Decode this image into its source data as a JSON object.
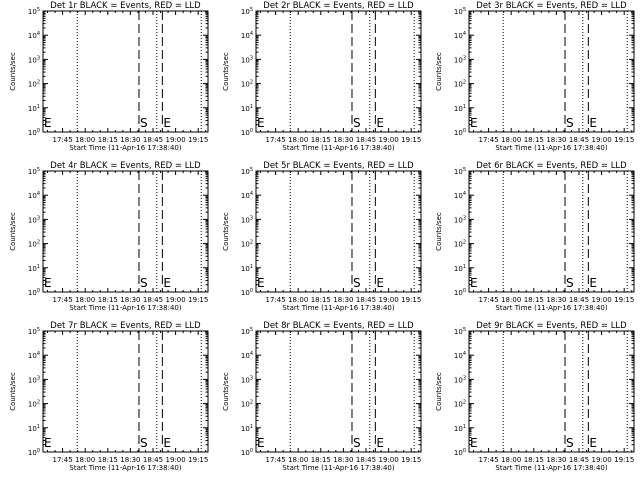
{
  "chart_data": [
    {
      "type": "line",
      "title": "Det 1r BLACK = Events, RED = LLD",
      "xlabel": "Start Time (11-Apr-16 17:38:40)",
      "ylabel": "Counts/sec"
    },
    {
      "type": "line",
      "title": "Det 2r BLACK = Events, RED = LLD",
      "xlabel": "Start Time (11-Apr-16 17:38:40)",
      "ylabel": "Counts/sec"
    },
    {
      "type": "line",
      "title": "Det 3r BLACK = Events, RED = LLD",
      "xlabel": "Start Time (11-Apr-16 17:38:40)",
      "ylabel": "Counts/sec"
    },
    {
      "type": "line",
      "title": "Det 4r BLACK = Events, RED = LLD",
      "xlabel": "Start Time (11-Apr-16 17:38:40)",
      "ylabel": "Counts/sec"
    },
    {
      "type": "line",
      "title": "Det 5r BLACK = Events, RED = LLD",
      "xlabel": "Start Time (11-Apr-16 17:38:40)",
      "ylabel": "Counts/sec"
    },
    {
      "type": "line",
      "title": "Det 6r BLACK = Events, RED = LLD",
      "xlabel": "Start Time (11-Apr-16 17:38:40)",
      "ylabel": "Counts/sec"
    },
    {
      "type": "line",
      "title": "Det 7r BLACK = Events, RED = LLD",
      "xlabel": "Start Time (11-Apr-16 17:38:40)",
      "ylabel": "Counts/sec"
    },
    {
      "type": "line",
      "title": "Det 8r BLACK = Events, RED = LLD",
      "xlabel": "Start Time (11-Apr-16 17:38:40)",
      "ylabel": "Counts/sec"
    },
    {
      "type": "line",
      "title": "Det 9r BLACK = Events, RED = LLD",
      "xlabel": "Start Time (11-Apr-16 17:38:40)",
      "ylabel": "Counts/sec"
    }
  ],
  "shared_axes": {
    "x_tick_labels": [
      "17:45",
      "18:00",
      "18:15",
      "18:30",
      "18:45",
      "19:00",
      "19:15"
    ],
    "x_tick_minutes": [
      0,
      15,
      30,
      45,
      60,
      75,
      90
    ],
    "x_range_minutes": [
      -13.0,
      96.5
    ],
    "y_scale": "log",
    "y_tick_exponents": [
      0,
      1,
      2,
      3,
      4,
      5
    ],
    "y_range_exponents": [
      0,
      5
    ]
  },
  "vertical_lines": [
    {
      "style": "dotted",
      "x_minutes": -13.0,
      "label": "E"
    },
    {
      "style": "dotted",
      "x_minutes": 9.7
    },
    {
      "style": "dashed",
      "x_minutes": 50.7,
      "label": "S"
    },
    {
      "style": "dotted",
      "x_minutes": 62.5
    },
    {
      "style": "dashed",
      "x_minutes": 66.2,
      "label": "E"
    },
    {
      "style": "dotted",
      "x_minutes": 92.0
    },
    {
      "style": "dotted",
      "x_minutes": 96.5
    }
  ],
  "colors": {
    "background": "#ffffff",
    "axes": "#000000",
    "events": "#000000",
    "lld": "#ff0000"
  }
}
